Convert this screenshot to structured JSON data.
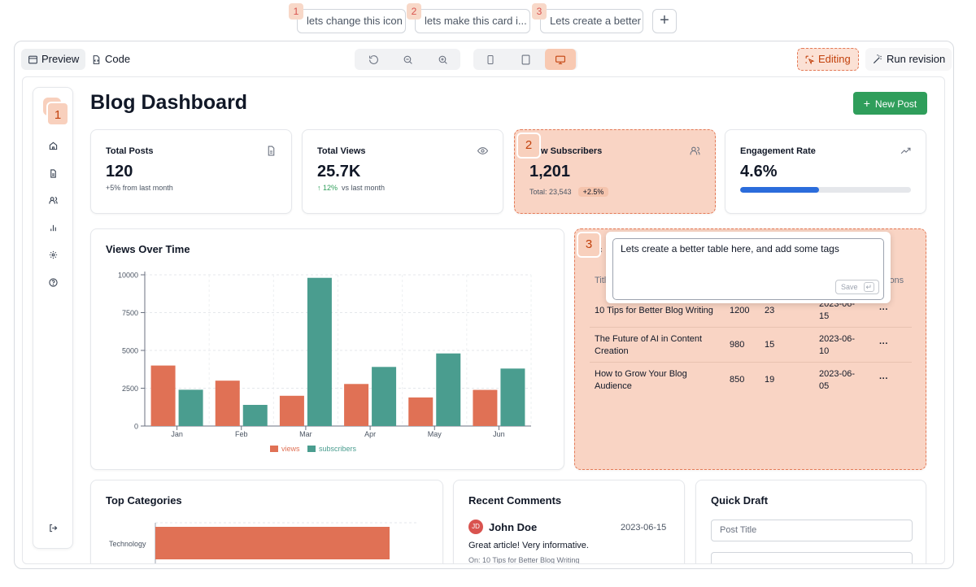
{
  "revisions": [
    {
      "num": "1",
      "label": "lets change this icon"
    },
    {
      "num": "2",
      "label": "lets make this card i..."
    },
    {
      "num": "3",
      "label": "Lets create a better"
    }
  ],
  "toolbar": {
    "preview_label": "Preview",
    "code_label": "Code",
    "editing_label": "Editing",
    "run_revision_label": "Run revision"
  },
  "sidebar": {
    "badge": "1",
    "items": [
      "home-icon",
      "file-text-icon",
      "users-icon",
      "bar-chart-icon",
      "settings-icon",
      "help-circle-icon"
    ],
    "logout_icon": "log-out-icon"
  },
  "dashboard": {
    "title": "Blog Dashboard",
    "new_post_label": "New Post",
    "stats": {
      "posts": {
        "label": "Total Posts",
        "value": "120",
        "sub": "+5% from last month"
      },
      "views": {
        "label": "Total Views",
        "value": "25.7K",
        "change": "12%",
        "sub": "vs last month"
      },
      "subscribers": {
        "badge": "2",
        "label": "New Subscribers",
        "value": "1,201",
        "total_label": "Total:",
        "total": "23,543",
        "change": "+2.5%"
      },
      "engagement": {
        "label": "Engagement Rate",
        "value": "4.6%",
        "progress": 0.46
      }
    }
  },
  "views_chart": {
    "title": "Views Over Time"
  },
  "chart_data": {
    "type": "bar",
    "title": "Views Over Time",
    "categories": [
      "Jan",
      "Feb",
      "Mar",
      "Apr",
      "May",
      "Jun"
    ],
    "series": [
      {
        "name": "views",
        "values": [
          4000,
          3000,
          2000,
          2780,
          1890,
          2390
        ],
        "color": "#e07155"
      },
      {
        "name": "subscribers",
        "values": [
          2400,
          1398,
          9800,
          3908,
          4800,
          3800
        ],
        "color": "#4a9d8f"
      }
    ],
    "yticks": [
      "0",
      "2500",
      "5000",
      "7500",
      "10000"
    ],
    "ylim": [
      0,
      10000
    ],
    "grid": true,
    "legend": "bottom"
  },
  "posts_table": {
    "badge": "3",
    "title_partial": "c",
    "headers": {
      "title": "Titl",
      "actions": "ions"
    },
    "rows": [
      {
        "title": "10 Tips for Better Blog Writing",
        "views": "1200",
        "comments": "23",
        "date": "2023-06-15"
      },
      {
        "title": "The Future of AI in Content Creation",
        "views": "980",
        "comments": "15",
        "date": "2023-06-10"
      },
      {
        "title": "How to Grow Your Blog Audience",
        "views": "850",
        "comments": "19",
        "date": "2023-06-05"
      }
    ],
    "row_display": [
      {
        "title_l1": "10 Tips for Better Blog Writing",
        "title_l2": "",
        "date_l1": "2023-06-",
        "date_l2": "15"
      },
      {
        "title_l1": "The Future of AI in Content",
        "title_l2": "Creation",
        "date_l1": "2023-06-",
        "date_l2": "10"
      },
      {
        "title_l1": "How to Grow Your Blog",
        "title_l2": "Audience",
        "date_l1": "2023-06-",
        "date_l2": "05"
      }
    ],
    "actions_icon": "more-horizontal-icon",
    "popup": {
      "text": "Lets create a better table here, and add some tags",
      "save_label": "Save",
      "enter_icon": "↵"
    }
  },
  "categories": {
    "title": "Top Categories",
    "first_label": "Technology"
  },
  "comments": {
    "title": "Recent Comments",
    "items": [
      {
        "initials": "JD",
        "name": "John Doe",
        "date": "2023-06-15",
        "text": "Great article! Very informative.",
        "on": "On: 10 Tips for Better Blog Writing"
      }
    ]
  },
  "draft": {
    "title": "Quick Draft",
    "title_placeholder": "Post Title"
  }
}
